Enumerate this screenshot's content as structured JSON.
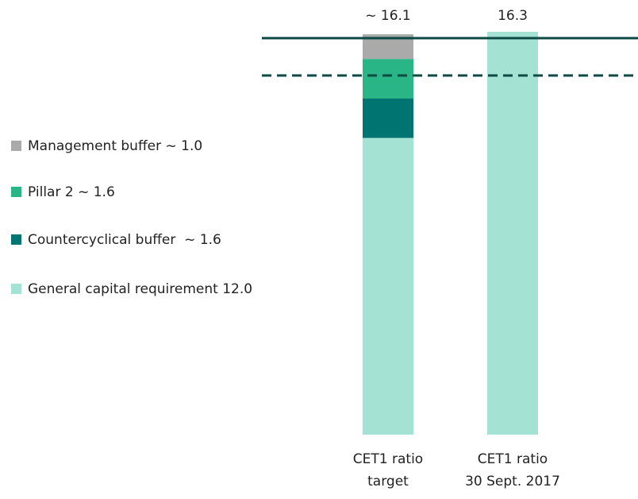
{
  "chart_data": {
    "type": "stacked-bar",
    "categories": [
      [
        "CET1 ratio",
        "target"
      ],
      [
        "CET1 ratio",
        "30 Sept. 2017"
      ]
    ],
    "series": [
      {
        "name": "General capital requirement 12.0",
        "color": "#a4e3d4",
        "values": [
          12.0,
          16.3
        ]
      },
      {
        "name": "Countercyclical buffer  ~ 1.6",
        "color": "#007470",
        "values": [
          1.6,
          null
        ]
      },
      {
        "name": "Pillar 2 ~ 1.6",
        "color": "#2ab586",
        "values": [
          1.6,
          null
        ]
      },
      {
        "name": "Management buffer ~ 1.0",
        "color": "#aaaaaa",
        "values": [
          1.0,
          null
        ]
      }
    ],
    "totals": [
      16.1,
      16.3
    ],
    "total_labels": [
      "~ 16.1",
      "16.3"
    ],
    "ylim": [
      0,
      16.3
    ]
  }
}
